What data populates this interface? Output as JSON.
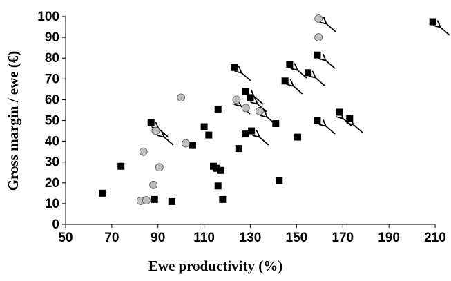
{
  "chart_data": {
    "type": "scatter",
    "x_label": "Ewe productivity (%)",
    "y_label": "Gross margin / ewe (€)",
    "xlim": [
      50,
      210
    ],
    "xticks": [
      50,
      70,
      90,
      110,
      130,
      150,
      170,
      190,
      210
    ],
    "ylim": [
      0,
      100
    ],
    "yticks": [
      0,
      10,
      20,
      30,
      40,
      50,
      60,
      70,
      80,
      90,
      100
    ],
    "series": [
      {
        "color": "#000000",
        "marker": "square",
        "x": [
          66,
          74,
          87,
          88.5,
          96,
          105,
          110,
          112,
          114,
          115.5,
          116,
          116,
          117,
          118,
          123,
          125,
          128,
          128,
          130,
          130.5,
          141,
          142.5,
          150.5,
          145,
          147,
          155,
          159,
          159,
          168.5,
          173,
          209
        ],
        "values": [
          15,
          28,
          49,
          12,
          11,
          38,
          47,
          43,
          28,
          27,
          55.5,
          18.5,
          26,
          12,
          75.5,
          36.5,
          64,
          43.5,
          61,
          45,
          48.5,
          21,
          42,
          69,
          77,
          73,
          81.5,
          50,
          54,
          51,
          97.5
        ]
      },
      {
        "color": "#c0c0c0",
        "marker": "circle",
        "x": [
          82.5,
          85,
          83.7,
          88,
          89,
          90.6,
          100,
          102,
          124,
          128,
          134,
          159.5,
          159.5
        ],
        "values": [
          11.3,
          11.6,
          35,
          19,
          45,
          27.5,
          61,
          39,
          60,
          56,
          54.5,
          99,
          90
        ]
      }
    ]
  }
}
